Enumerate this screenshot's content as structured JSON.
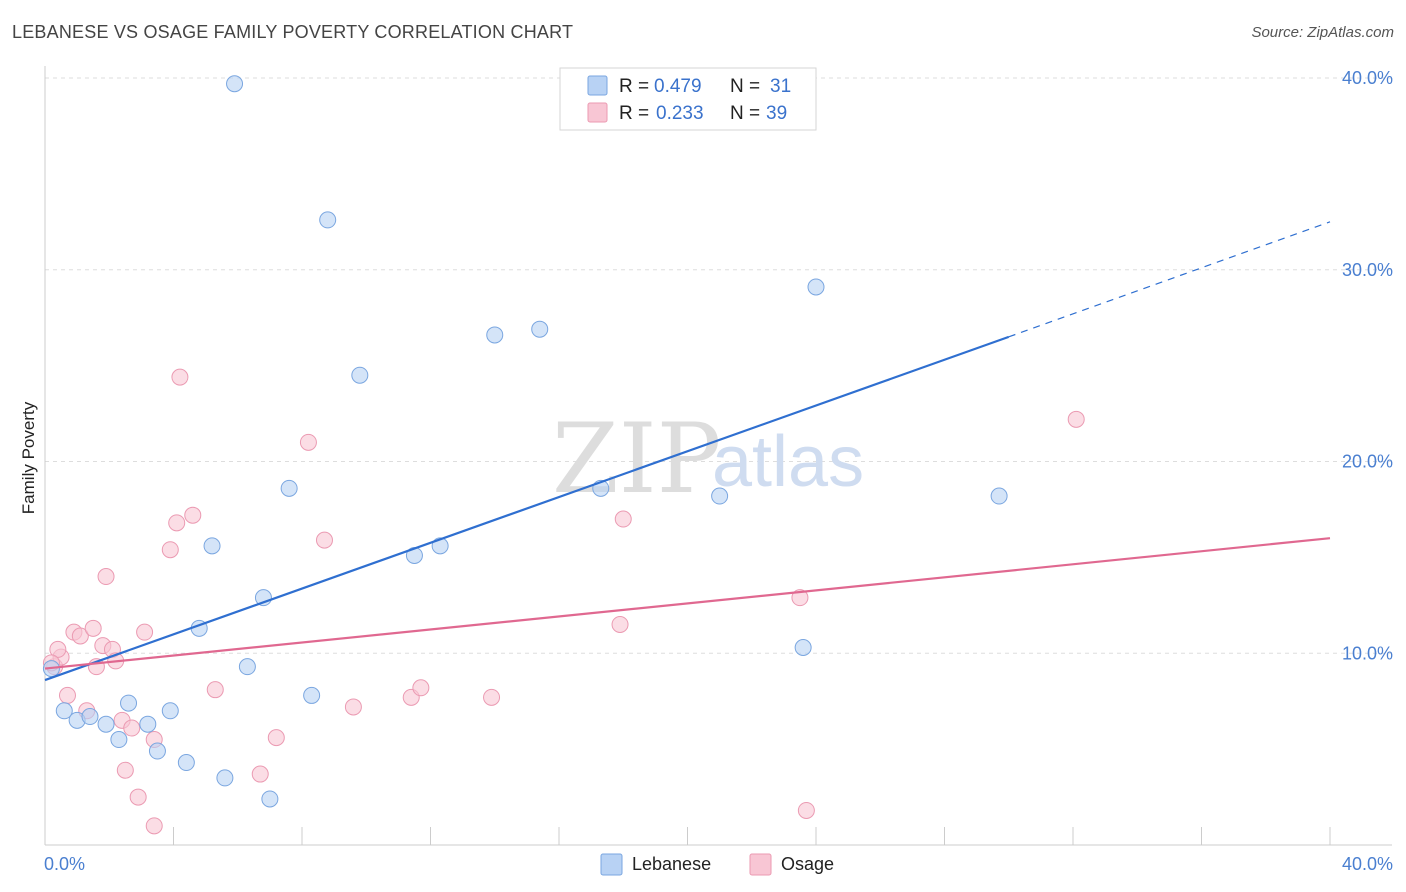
{
  "title": "LEBANESE VS OSAGE FAMILY POVERTY CORRELATION CHART",
  "source": "Source: ZipAtlas.com",
  "watermark": {
    "zip": "ZIP",
    "atlas": "atlas"
  },
  "legend": {
    "r_label": "R =",
    "n_label": "N =",
    "entries": [
      {
        "name": "Lebanese",
        "r": "0.479",
        "n": "31"
      },
      {
        "name": "Osage",
        "r": "0.233",
        "n": "39"
      }
    ]
  },
  "colors": {
    "lebanese_fill": "#b8d2f4",
    "lebanese_stroke": "#7aa6e0",
    "lebanese_line": "#2f6fd0",
    "osage_fill": "#f8c6d4",
    "osage_stroke": "#eb9ab2",
    "osage_line": "#e06890",
    "grid": "#dddddd",
    "tick_label": "#4a7fd0"
  },
  "chart_data": {
    "type": "scatter",
    "title": "LEBANESE VS OSAGE FAMILY POVERTY CORRELATION CHART",
    "xlabel": "",
    "ylabel": "Family Poverty",
    "xlim": [
      0,
      40
    ],
    "ylim": [
      0,
      40
    ],
    "x_tick_labels": [
      "0.0%",
      "40.0%"
    ],
    "y_ticks": [
      10,
      20,
      30,
      40
    ],
    "y_tick_labels": [
      "10.0%",
      "20.0%",
      "30.0%",
      "40.0%"
    ],
    "grid": true,
    "legend_position": "top-center",
    "series": [
      {
        "name": "Lebanese",
        "r": 0.479,
        "n": 31,
        "points": [
          [
            0.2,
            9.2
          ],
          [
            0.6,
            7.0
          ],
          [
            1.0,
            6.5
          ],
          [
            1.4,
            6.7
          ],
          [
            1.9,
            6.3
          ],
          [
            2.3,
            5.5
          ],
          [
            2.6,
            7.4
          ],
          [
            3.2,
            6.3
          ],
          [
            3.5,
            4.9
          ],
          [
            3.9,
            7.0
          ],
          [
            4.4,
            4.3
          ],
          [
            4.8,
            11.3
          ],
          [
            5.2,
            15.6
          ],
          [
            5.6,
            3.5
          ],
          [
            5.9,
            39.7
          ],
          [
            6.3,
            9.3
          ],
          [
            6.8,
            12.9
          ],
          [
            7.0,
            2.4
          ],
          [
            7.6,
            18.6
          ],
          [
            8.3,
            7.8
          ],
          [
            8.8,
            32.6
          ],
          [
            9.8,
            24.5
          ],
          [
            11.5,
            15.1
          ],
          [
            12.3,
            15.6
          ],
          [
            14.0,
            26.6
          ],
          [
            15.4,
            26.9
          ],
          [
            17.3,
            18.6
          ],
          [
            21.0,
            18.2
          ],
          [
            23.6,
            10.3
          ],
          [
            24.0,
            29.1
          ],
          [
            29.7,
            18.2
          ]
        ],
        "trend": {
          "x0": 0,
          "y0": 8.6,
          "x1": 30,
          "y1": 26.5,
          "dashed_to_x": 40,
          "dashed_to_y": 32.5
        }
      },
      {
        "name": "Osage",
        "r": 0.233,
        "n": 39,
        "points": [
          [
            0.3,
            9.3
          ],
          [
            0.5,
            9.8
          ],
          [
            0.4,
            10.2
          ],
          [
            0.7,
            7.8
          ],
          [
            0.9,
            11.1
          ],
          [
            1.1,
            10.9
          ],
          [
            1.3,
            7.0
          ],
          [
            1.5,
            11.3
          ],
          [
            1.6,
            9.3
          ],
          [
            1.8,
            10.4
          ],
          [
            1.9,
            14.0
          ],
          [
            2.1,
            10.2
          ],
          [
            2.2,
            9.6
          ],
          [
            2.4,
            6.5
          ],
          [
            2.5,
            3.9
          ],
          [
            2.7,
            6.1
          ],
          [
            2.9,
            2.5
          ],
          [
            3.1,
            11.1
          ],
          [
            3.4,
            5.5
          ],
          [
            3.4,
            1.0
          ],
          [
            3.9,
            15.4
          ],
          [
            4.1,
            16.8
          ],
          [
            4.2,
            24.4
          ],
          [
            4.6,
            17.2
          ],
          [
            5.3,
            8.1
          ],
          [
            6.7,
            3.7
          ],
          [
            7.2,
            5.6
          ],
          [
            8.2,
            21.0
          ],
          [
            8.7,
            15.9
          ],
          [
            9.6,
            7.2
          ],
          [
            11.4,
            7.7
          ],
          [
            11.7,
            8.2
          ],
          [
            13.9,
            7.7
          ],
          [
            17.9,
            11.5
          ],
          [
            18.0,
            17.0
          ],
          [
            23.5,
            12.9
          ],
          [
            23.7,
            1.8
          ],
          [
            32.1,
            22.2
          ],
          [
            0.2,
            9.5
          ]
        ],
        "trend": {
          "x0": 0,
          "y0": 9.2,
          "x1": 40,
          "y1": 16.0
        }
      }
    ]
  },
  "bottom_legend": [
    "Lebanese",
    "Osage"
  ]
}
